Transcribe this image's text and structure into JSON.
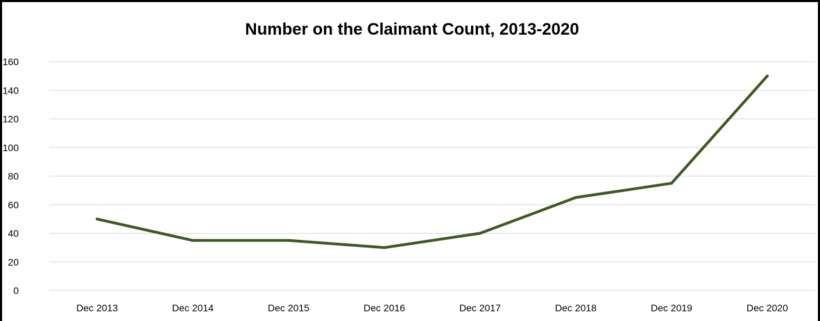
{
  "chart_data": {
    "type": "line",
    "title": "Number on the Claimant Count, 2013-2020",
    "xlabel": "",
    "ylabel": "",
    "categories": [
      "Dec 2013",
      "Dec 2014",
      "Dec 2015",
      "Dec 2016",
      "Dec 2017",
      "Dec 2018",
      "Dec 2019",
      "Dec 2020"
    ],
    "series": [
      {
        "values": [
          50,
          35,
          35,
          30,
          40,
          65,
          75,
          150
        ]
      }
    ],
    "ylim": [
      0,
      160
    ],
    "yticks": [
      "0",
      "20",
      "40",
      "60",
      "80",
      "100",
      "120",
      "140",
      "160"
    ],
    "grid": true,
    "legend": "none",
    "colors": {
      "line": "#3d5a22",
      "grid": "#d9d9d9",
      "frame": "#000000"
    }
  }
}
